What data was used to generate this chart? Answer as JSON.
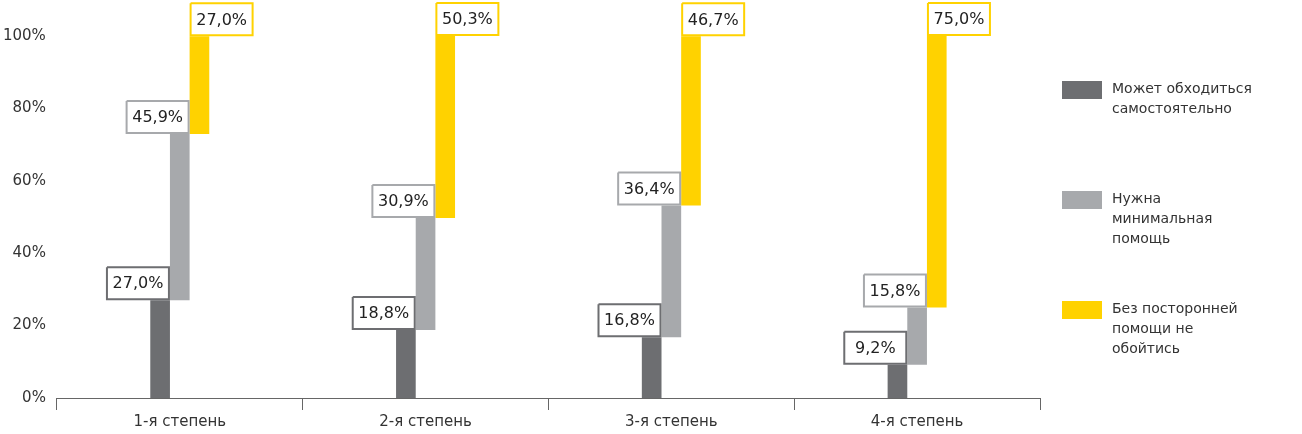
{
  "chart_data": {
    "type": "bar",
    "categories": [
      "1-я степень",
      "2-я степень",
      "3-я степень",
      "4-я степень"
    ],
    "series": [
      {
        "name": "Может обходиться самостоятельно",
        "color": "#6d6e71",
        "base": [
          0,
          0,
          0,
          0
        ],
        "values": [
          27.0,
          18.8,
          16.8,
          9.2
        ],
        "value_labels": [
          "27,0%",
          "18,8%",
          "16,8%",
          "9,2%"
        ]
      },
      {
        "name": "Нужна минимальная помощь",
        "color": "#a7a9ac",
        "base": [
          27.0,
          18.8,
          16.8,
          9.2
        ],
        "values": [
          45.9,
          30.9,
          36.4,
          15.8
        ],
        "value_labels": [
          "45,9%",
          "30,9%",
          "36,4%",
          "15,8%"
        ]
      },
      {
        "name": "Без посторонней помощи не обойтись",
        "color": "#ffd200",
        "base": [
          72.9,
          49.7,
          53.2,
          25.0
        ],
        "values": [
          27.0,
          50.3,
          46.7,
          75.0
        ],
        "value_labels": [
          "27,0%",
          "50,3%",
          "46,7%",
          "75,0%"
        ]
      }
    ],
    "ylim": [
      0,
      100
    ],
    "yticks": [
      {
        "value": 0,
        "label": "0%"
      },
      {
        "value": 20,
        "label": "20%"
      },
      {
        "value": 40,
        "label": "40%"
      },
      {
        "value": 60,
        "label": "60%"
      },
      {
        "value": 80,
        "label": "80%"
      },
      {
        "value": 100,
        "label": "100%"
      }
    ],
    "grid": false,
    "legend": "right"
  }
}
